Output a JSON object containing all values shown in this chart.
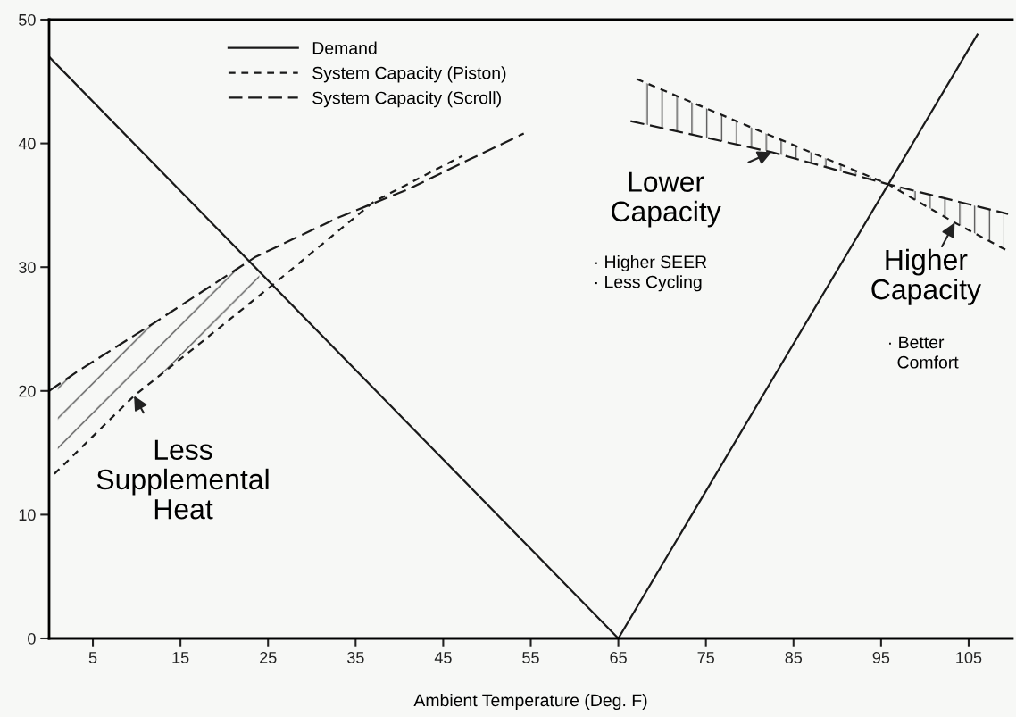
{
  "chart_data": {
    "type": "line",
    "xlabel": "Ambient Temperature (Deg. F)",
    "xlim": [
      0,
      110
    ],
    "xticks": [
      5,
      15,
      25,
      35,
      45,
      55,
      65,
      75,
      85,
      95,
      105
    ],
    "ylim": [
      0,
      50
    ],
    "yticks": [
      0,
      10,
      20,
      30,
      40,
      50
    ],
    "grid": false,
    "legend": "top left",
    "marker": "none",
    "series": [
      {
        "name": "Demand",
        "color": "#1a1a1a",
        "line_style": "solid",
        "x": [
          0,
          65,
          106
        ],
        "values": [
          47,
          0,
          48.8
        ]
      },
      {
        "name": "System Capacity (Piston)",
        "color": "#1a1a1a",
        "line_style": "dotted",
        "x": [
          0.6,
          2.5,
          9.7,
          16.1,
          26.1,
          37.1,
          47.2,
          57,
          67.1,
          82.5,
          95.8,
          103.4,
          109.5
        ],
        "values": [
          13.3,
          14.6,
          19.6,
          23.2,
          28.9,
          35.3,
          39.0,
          null,
          45.2,
          40.6,
          36.7,
          33.6,
          31.3
        ]
      },
      {
        "name": "System Capacity (Scroll)",
        "color": "#1a1a1a",
        "line_style": "dashed",
        "x": [
          0,
          3.3,
          12,
          23.5,
          33,
          41,
          48,
          54.2,
          60,
          66.4,
          82.5,
          95.8,
          109.5
        ],
        "values": [
          20,
          21.6,
          25.5,
          30.8,
          34,
          36.3,
          38.7,
          40.8,
          null,
          41.8,
          39.3,
          36.7,
          34.3
        ]
      }
    ],
    "annotations": [
      {
        "text": "Less\nSupplemental\nHeat",
        "x": 9.7,
        "y": 19.6
      },
      {
        "text": "Lower\nCapacity",
        "x": 82.5,
        "y": 39.3
      },
      "· Higher SEER\n· Less Cycling",
      {
        "text": "Higher\nCapacity",
        "x": 103.4,
        "y": 33.6
      },
      "· Better\n  Comfort"
    ]
  }
}
